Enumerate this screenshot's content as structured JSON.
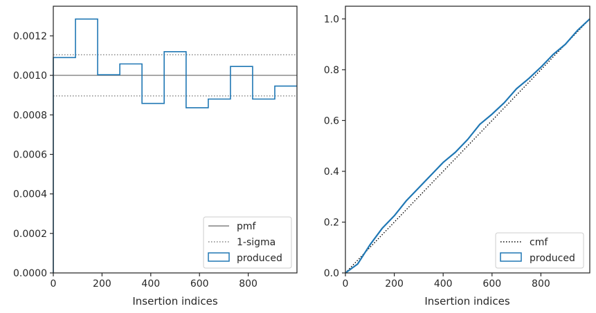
{
  "chart_data": [
    {
      "type": "histogram",
      "xlabel": "Insertion indices",
      "ylabel": "",
      "xlim": [
        0,
        1000
      ],
      "ylim": [
        0,
        0.00135
      ],
      "xticks": [
        0,
        200,
        400,
        600,
        800
      ],
      "xtick_labels": [
        "0",
        "200",
        "400",
        "600",
        "800"
      ],
      "yticks": [
        0,
        0.0002,
        0.0004,
        0.0006,
        0.0008,
        0.001,
        0.0012
      ],
      "ytick_labels": [
        "0.0000",
        "0.0002",
        "0.0004",
        "0.0006",
        "0.0008",
        "0.0010",
        "0.0012"
      ],
      "pmf": 0.001,
      "sigma_upper": 0.001104,
      "sigma_lower": 0.000896,
      "bin_edges": [
        0,
        91,
        182,
        273,
        364,
        455,
        545,
        636,
        727,
        818,
        909,
        1000
      ],
      "produced": [
        0.00109,
        0.001285,
        0.001003,
        0.001058,
        0.000858,
        0.00112,
        0.000836,
        0.00088,
        0.001045,
        0.00088,
        0.000946
      ],
      "grid": false,
      "legend_position": "lower right",
      "legend": [
        {
          "label": "pmf",
          "style": "solid",
          "color": "#808080"
        },
        {
          "label": "1-sigma",
          "style": "dotted",
          "color": "#808080"
        },
        {
          "label": "produced",
          "style": "step",
          "color": "#1f77b4"
        }
      ]
    },
    {
      "type": "line",
      "xlabel": "Insertion indices",
      "ylabel": "",
      "xlim": [
        0,
        1000
      ],
      "ylim": [
        0,
        1.05
      ],
      "xticks": [
        0,
        200,
        400,
        600,
        800
      ],
      "xtick_labels": [
        "0",
        "200",
        "400",
        "600",
        "800"
      ],
      "yticks": [
        0,
        0.2,
        0.4,
        0.6,
        0.8,
        1.0
      ],
      "ytick_labels": [
        "0.0",
        "0.2",
        "0.4",
        "0.6",
        "0.8",
        "1.0"
      ],
      "cmf": {
        "x": [
          0,
          1000
        ],
        "y": [
          0,
          1
        ]
      },
      "produced": {
        "x": [
          0,
          50,
          100,
          150,
          200,
          250,
          300,
          350,
          400,
          450,
          500,
          550,
          600,
          650,
          700,
          750,
          800,
          850,
          900,
          950,
          1000
        ],
        "y": [
          0,
          0.035,
          0.11,
          0.175,
          0.225,
          0.285,
          0.335,
          0.385,
          0.435,
          0.475,
          0.525,
          0.585,
          0.625,
          0.67,
          0.725,
          0.765,
          0.81,
          0.86,
          0.9,
          0.955,
          1.0
        ]
      },
      "grid": false,
      "legend_position": "lower right",
      "legend": [
        {
          "label": "cmf",
          "style": "dotted",
          "color": "#000000"
        },
        {
          "label": "produced",
          "style": "step",
          "color": "#1f77b4"
        }
      ]
    }
  ]
}
